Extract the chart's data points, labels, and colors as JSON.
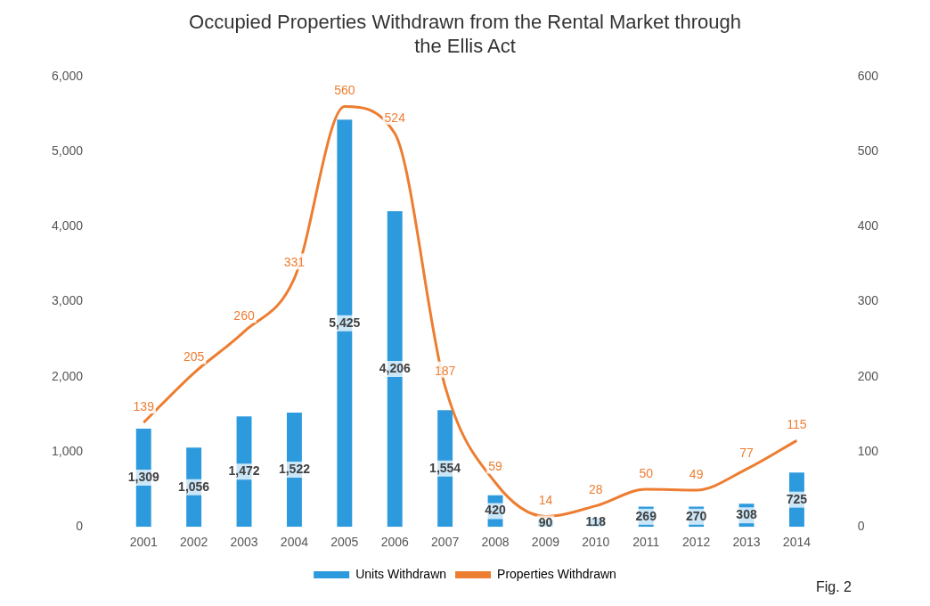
{
  "chart_data": {
    "type": "bar",
    "title": "Occupied Properties Withdrawn from the Rental Market through the Ellis Act",
    "categories": [
      "2001",
      "2002",
      "2003",
      "2004",
      "2005",
      "2006",
      "2007",
      "2008",
      "2009",
      "2010",
      "2011",
      "2012",
      "2013",
      "2014"
    ],
    "series": [
      {
        "name": "Units Withdrawn",
        "color": "#2e9ade",
        "values": [
          1309,
          1056,
          1472,
          1522,
          5425,
          4206,
          1554,
          420,
          90,
          118,
          269,
          270,
          308,
          725
        ],
        "value_labels": [
          "1,309",
          "1,056",
          "1,472",
          "1,522",
          "5,425",
          "4,206",
          "1,554",
          "420",
          "90",
          "118",
          "269",
          "270",
          "308",
          "725"
        ]
      },
      {
        "name": "Properties Withdrawn",
        "type": "line",
        "axis": "y2",
        "color": "#ed7d31",
        "values": [
          139,
          205,
          260,
          331,
          560,
          524,
          187,
          59,
          14,
          28,
          50,
          49,
          77,
          115
        ]
      }
    ],
    "ylim": [
      0,
      6000
    ],
    "yticks": [
      {
        "value": 0,
        "label": "0"
      },
      {
        "value": 1000,
        "label": "1,000"
      },
      {
        "value": 2000,
        "label": "2,000"
      },
      {
        "value": 3000,
        "label": "3,000"
      },
      {
        "value": 4000,
        "label": "4,000"
      },
      {
        "value": 5000,
        "label": "5,000"
      },
      {
        "value": 6000,
        "label": "6,000"
      }
    ],
    "y2lim": [
      0,
      600
    ],
    "y2ticks": [
      0,
      100,
      200,
      300,
      400,
      500,
      600
    ],
    "data_labels": true,
    "grid": false,
    "legend": "bottom",
    "marker": "none",
    "annotations": [
      "Fig. 2"
    ]
  }
}
